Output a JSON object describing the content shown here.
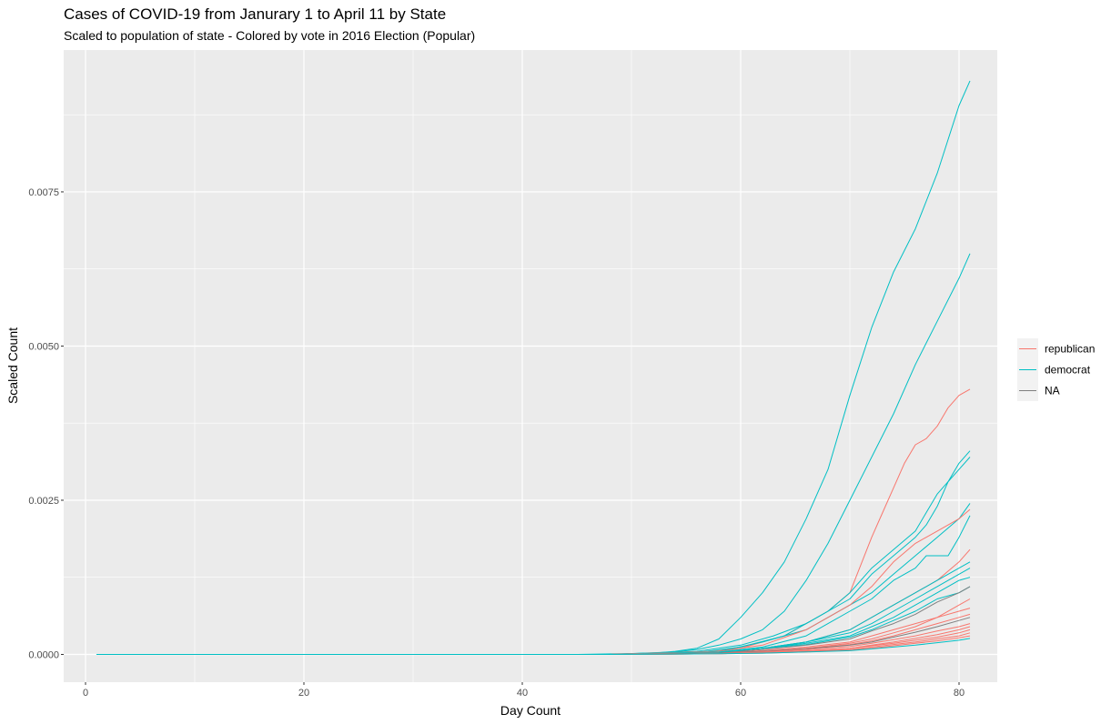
{
  "chart_data": {
    "type": "line",
    "title": "Cases of COVID-19 from Janurary 1 to April 11 by State",
    "subtitle": "Scaled to population of state - Colored by vote in 2016 Election (Popular)",
    "xlabel": "Day Count",
    "ylabel": "Scaled Count",
    "xlim": [
      -2,
      83.5
    ],
    "ylim": [
      -0.00045,
      0.0098
    ],
    "x_ticks": [
      0,
      20,
      40,
      60,
      80
    ],
    "x_tick_labels": [
      "0",
      "20",
      "40",
      "60",
      "80"
    ],
    "y_ticks": [
      0,
      0.0025,
      0.005,
      0.0075
    ],
    "y_tick_labels": [
      "0.0000",
      "0.0025",
      "0.0050",
      "0.0075"
    ],
    "grid": true,
    "legend_position": "right",
    "legend": [
      {
        "label": "republican",
        "color": "#F8766D"
      },
      {
        "label": "democrat",
        "color": "#00BFC4"
      },
      {
        "label": "NA",
        "color": "#7F7F7F"
      }
    ],
    "series": [
      {
        "group": "democrat",
        "x": [
          1,
          45,
          52,
          54,
          56,
          58,
          60,
          62,
          64,
          66,
          68,
          70,
          72,
          74,
          76,
          78,
          80,
          81
        ],
        "y": [
          0,
          0,
          2e-05,
          5e-05,
          0.0001,
          0.00025,
          0.0006,
          0.001,
          0.0015,
          0.0022,
          0.003,
          0.0042,
          0.0053,
          0.0062,
          0.0069,
          0.0078,
          0.0089,
          0.0093
        ]
      },
      {
        "group": "democrat",
        "x": [
          1,
          48,
          54,
          56,
          58,
          60,
          62,
          64,
          66,
          68,
          70,
          72,
          74,
          76,
          78,
          80,
          81
        ],
        "y": [
          0,
          0,
          4e-05,
          8e-05,
          0.00015,
          0.00025,
          0.0004,
          0.0007,
          0.0012,
          0.0018,
          0.0025,
          0.0032,
          0.0039,
          0.0047,
          0.0054,
          0.0061,
          0.0065
        ]
      },
      {
        "group": "republican",
        "x": [
          48,
          55,
          60,
          62,
          64,
          66,
          68,
          70,
          72,
          73,
          74,
          75,
          76,
          77,
          78,
          79,
          80,
          81
        ],
        "y": [
          0,
          2e-05,
          0.0001,
          0.0002,
          0.0003,
          0.0005,
          0.0007,
          0.001,
          0.0019,
          0.0023,
          0.0027,
          0.0031,
          0.0034,
          0.0035,
          0.0037,
          0.004,
          0.0042,
          0.0043
        ]
      },
      {
        "group": "democrat",
        "x": [
          48,
          56,
          60,
          63,
          66,
          68,
          70,
          72,
          74,
          76,
          77,
          78,
          79,
          80,
          81
        ],
        "y": [
          0,
          5e-05,
          0.00015,
          0.0003,
          0.0005,
          0.0007,
          0.001,
          0.0014,
          0.0017,
          0.002,
          0.0023,
          0.0026,
          0.0028,
          0.0031,
          0.0033
        ]
      },
      {
        "group": "democrat",
        "x": [
          48,
          56,
          60,
          64,
          66,
          68,
          70,
          72,
          74,
          76,
          77,
          78,
          79,
          80,
          81
        ],
        "y": [
          0,
          3e-05,
          0.00012,
          0.0003,
          0.0005,
          0.0007,
          0.0009,
          0.0013,
          0.0016,
          0.0019,
          0.0021,
          0.0024,
          0.0028,
          0.003,
          0.0032
        ]
      },
      {
        "group": "democrat",
        "x": [
          48,
          58,
          62,
          66,
          68,
          70,
          72,
          74,
          76,
          78,
          80,
          81
        ],
        "y": [
          0,
          5e-05,
          0.0002,
          0.0004,
          0.0006,
          0.0008,
          0.001,
          0.0013,
          0.0016,
          0.0019,
          0.0022,
          0.00245
        ]
      },
      {
        "group": "republican",
        "x": [
          48,
          58,
          62,
          66,
          68,
          70,
          72,
          74,
          76,
          78,
          80,
          81
        ],
        "y": [
          0,
          5e-05,
          0.00015,
          0.0004,
          0.0006,
          0.0008,
          0.0011,
          0.0015,
          0.0018,
          0.002,
          0.0022,
          0.00235
        ]
      },
      {
        "group": "democrat",
        "x": [
          48,
          58,
          62,
          66,
          68,
          70,
          72,
          74,
          76,
          77,
          78,
          79,
          80,
          81
        ],
        "y": [
          0,
          4e-05,
          0.00012,
          0.0003,
          0.0005,
          0.0007,
          0.0009,
          0.0012,
          0.0014,
          0.0016,
          0.0016,
          0.0016,
          0.0019,
          0.00225
        ]
      },
      {
        "group": "republican",
        "x": [
          48,
          58,
          62,
          66,
          70,
          72,
          74,
          76,
          78,
          80,
          81
        ],
        "y": [
          0,
          3e-05,
          0.0001,
          0.0002,
          0.0004,
          0.0006,
          0.0008,
          0.001,
          0.0012,
          0.0015,
          0.0017
        ]
      },
      {
        "group": "democrat",
        "x": [
          48,
          58,
          62,
          66,
          70,
          72,
          74,
          76,
          78,
          80,
          81
        ],
        "y": [
          0,
          3e-05,
          0.0001,
          0.0002,
          0.0004,
          0.0006,
          0.0008,
          0.001,
          0.0012,
          0.0014,
          0.0015
        ]
      },
      {
        "group": "democrat",
        "x": [
          48,
          58,
          62,
          66,
          70,
          72,
          74,
          76,
          78,
          80,
          81
        ],
        "y": [
          0,
          3e-05,
          0.0001,
          0.0002,
          0.00035,
          0.0005,
          0.0007,
          0.0009,
          0.0011,
          0.0013,
          0.0014
        ]
      },
      {
        "group": "democrat",
        "x": [
          48,
          58,
          62,
          66,
          70,
          72,
          74,
          76,
          78,
          80,
          81
        ],
        "y": [
          0,
          3e-05,
          0.0001,
          0.00018,
          0.0003,
          0.00045,
          0.0006,
          0.0008,
          0.001,
          0.0012,
          0.00125
        ]
      },
      {
        "group": "democrat",
        "x": [
          48,
          58,
          62,
          66,
          70,
          72,
          74,
          76,
          78,
          80,
          81
        ],
        "y": [
          0,
          3e-05,
          0.0001,
          0.00016,
          0.00028,
          0.0004,
          0.00055,
          0.0007,
          0.0009,
          0.001,
          0.0011
        ]
      },
      {
        "group": "NA",
        "x": [
          48,
          58,
          62,
          66,
          70,
          72,
          74,
          76,
          78,
          80,
          81
        ],
        "y": [
          0,
          2e-05,
          8e-05,
          0.00015,
          0.00025,
          0.00038,
          0.0005,
          0.00065,
          0.00085,
          0.001,
          0.0011
        ]
      },
      {
        "group": "republican",
        "x": [
          48,
          58,
          62,
          66,
          70,
          72,
          74,
          76,
          78,
          80,
          81
        ],
        "y": [
          0,
          2e-05,
          6e-05,
          0.00012,
          0.0002,
          0.0003,
          0.0004,
          0.0005,
          0.0006,
          0.0008,
          0.0009
        ]
      },
      {
        "group": "republican",
        "x": [
          48,
          58,
          62,
          66,
          70,
          72,
          74,
          76,
          78,
          80,
          81
        ],
        "y": [
          0,
          2e-05,
          5e-05,
          0.0001,
          0.00018,
          0.00025,
          0.00035,
          0.00045,
          0.0006,
          0.0007,
          0.00075
        ]
      },
      {
        "group": "republican",
        "x": [
          48,
          58,
          62,
          66,
          70,
          72,
          74,
          76,
          78,
          80,
          81
        ],
        "y": [
          0,
          2e-05,
          5e-05,
          0.0001,
          0.00016,
          0.00022,
          0.0003,
          0.0004,
          0.0005,
          0.0006,
          0.00065
        ]
      },
      {
        "group": "NA",
        "x": [
          48,
          58,
          62,
          66,
          70,
          72,
          74,
          76,
          78,
          80,
          81
        ],
        "y": [
          0,
          2e-05,
          5e-05,
          9e-05,
          0.00015,
          0.0002,
          0.00028,
          0.00036,
          0.00045,
          0.00055,
          0.0006
        ]
      },
      {
        "group": "republican",
        "x": [
          48,
          58,
          62,
          66,
          70,
          72,
          74,
          76,
          78,
          80,
          81
        ],
        "y": [
          0,
          1e-05,
          4e-05,
          8e-05,
          0.00013,
          0.00018,
          0.00024,
          0.0003,
          0.00038,
          0.00045,
          0.0005
        ]
      },
      {
        "group": "republican",
        "x": [
          48,
          58,
          62,
          66,
          70,
          72,
          74,
          76,
          78,
          80,
          81
        ],
        "y": [
          0,
          1e-05,
          3e-05,
          6e-05,
          0.0001,
          0.00015,
          0.0002,
          0.00026,
          0.00032,
          0.0004,
          0.00045
        ]
      },
      {
        "group": "republican",
        "x": [
          48,
          58,
          62,
          66,
          70,
          72,
          74,
          76,
          78,
          80,
          81
        ],
        "y": [
          0,
          1e-05,
          3e-05,
          6e-05,
          0.0001,
          0.00014,
          0.00018,
          0.00023,
          0.00028,
          0.00035,
          0.0004
        ]
      },
      {
        "group": "republican",
        "x": [
          48,
          58,
          62,
          66,
          70,
          72,
          74,
          76,
          78,
          80,
          81
        ],
        "y": [
          0,
          1e-05,
          3e-05,
          5e-05,
          8e-05,
          0.00012,
          0.00016,
          0.0002,
          0.00025,
          0.0003,
          0.00035
        ]
      },
      {
        "group": "republican",
        "x": [
          48,
          58,
          62,
          66,
          70,
          72,
          74,
          76,
          78,
          80,
          81
        ],
        "y": [
          0,
          1e-05,
          2e-05,
          4e-05,
          7e-05,
          0.0001,
          0.00014,
          0.00018,
          0.00022,
          0.00027,
          0.0003
        ]
      },
      {
        "group": "democrat",
        "x": [
          48,
          58,
          62,
          66,
          70,
          72,
          74,
          76,
          78,
          80,
          81
        ],
        "y": [
          0,
          1e-05,
          2e-05,
          4e-05,
          6e-05,
          9e-05,
          0.00012,
          0.00015,
          0.00019,
          0.00023,
          0.00026
        ]
      }
    ]
  }
}
